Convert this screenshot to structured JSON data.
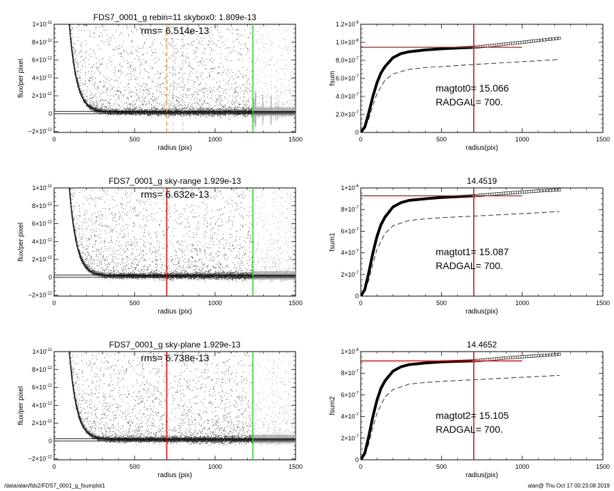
{
  "footer": {
    "left": "/data/alan/fds2/FDS7_0001_g_fsumplot1",
    "right": "alan@  Thu Oct 17 00:23:08 2019"
  },
  "colors": {
    "axis": "#000000",
    "points_dark": "#4a4a4a",
    "points_light": "#a9a9a9",
    "red": "#e00000",
    "green": "#21d421",
    "orange": "#f0a030"
  },
  "chart_data": [
    {
      "id": "profile-skybox0",
      "type": "scatter",
      "title": "FDS7_0001_g rebin=11   skybox0:  1.809e-13",
      "annotation": "rms= 6.514e-13",
      "xlabel": "radius (pix)",
      "ylabel": "flux/per pixel",
      "xlim": [
        0,
        1500
      ],
      "ylim": [
        -2.1e-12,
        1e-11
      ],
      "xticks": [
        0,
        500,
        1000,
        1500
      ],
      "yticks": [
        -2e-12,
        0,
        2e-12,
        4e-12,
        6e-12,
        8e-12,
        1e-11
      ],
      "profile_model": "flux ≈ 8e-11·exp(−r/45) + 1.6e-13",
      "horizontal_lines": [
        2.5e-13,
        0.0
      ],
      "vertical_lines": [
        {
          "x": 700,
          "color": "orange",
          "style": "dashed"
        },
        {
          "x": 740,
          "color": "light-gray",
          "style": "dashed"
        },
        {
          "x": 800,
          "color": "light-gray",
          "style": "dashed"
        },
        {
          "x": 1235,
          "color": "green",
          "style": "solid"
        }
      ],
      "outer_light_region_starts_at": 1235
    },
    {
      "id": "curve-of-growth-0",
      "type": "line",
      "title": "",
      "xlabel": "radius(pix)",
      "ylabel": "fsum",
      "xlim": [
        0,
        1500
      ],
      "ylim": [
        0,
        1.2e-06
      ],
      "xticks": [
        0,
        500,
        1000,
        1500
      ],
      "yticks": [
        0,
        2e-07,
        4e-07,
        6e-07,
        8e-07,
        1e-06,
        1.2e-06
      ],
      "ytick_labels": [
        "0",
        "2.0×10⁻⁷",
        "4.0×10⁻⁷",
        "6.0×10⁻⁷",
        "8.0×10⁻⁷",
        "1.0×10⁻⁶",
        "1.2×10⁻⁶"
      ],
      "labels": [
        "magtot0=  15.066",
        "RADGAL=    700."
      ],
      "series": [
        {
          "style": "thick",
          "x": [
            0,
            25,
            50,
            75,
            100,
            125,
            150,
            200,
            250,
            300,
            400,
            500,
            600,
            700
          ],
          "y": [
            0,
            6e-08,
            2.2e-07,
            4e-07,
            5.5e-07,
            6.6e-07,
            7.3e-07,
            8.3e-07,
            8.75e-07,
            8.95e-07,
            9.15e-07,
            9.28e-07,
            9.37e-07,
            9.45e-07
          ]
        },
        {
          "style": "squares",
          "x": [
            700,
            800,
            900,
            1000,
            1100,
            1230
          ],
          "y": [
            9.45e-07,
            9.62e-07,
            9.82e-07,
            1e-06,
            1.02e-06,
            1.045e-06
          ]
        },
        {
          "style": "dashed",
          "x": [
            0,
            25,
            50,
            75,
            100,
            150,
            200,
            300,
            400,
            500,
            700,
            900,
            1100,
            1230
          ],
          "y": [
            0,
            4e-08,
            1.5e-07,
            3e-07,
            4.3e-07,
            5.8e-07,
            6.5e-07,
            7e-07,
            7.2e-07,
            7.3e-07,
            7.55e-07,
            7.75e-07,
            7.95e-07,
            8.1e-07
          ]
        }
      ],
      "hline": {
        "y": 9.45e-07,
        "x_range": [
          0,
          1000
        ],
        "color": "red"
      },
      "vline": {
        "x": 700,
        "color": "red"
      }
    },
    {
      "id": "profile-sky-range",
      "type": "scatter",
      "title": "FDS7_0001_g sky-range  1.929e-13",
      "annotation": "rms= 6.632e-13",
      "xlabel": "radius (pix)",
      "ylabel": "flux/per pixel",
      "xlim": [
        0,
        1500
      ],
      "ylim": [
        -2.1e-12,
        1e-11
      ],
      "xticks": [
        0,
        500,
        1000,
        1500
      ],
      "yticks": [
        -2e-12,
        0,
        2e-12,
        4e-12,
        6e-12,
        8e-12,
        1e-11
      ],
      "horizontal_lines": [
        2.5e-13,
        0.0
      ],
      "vertical_lines": [
        {
          "x": 700,
          "color": "red",
          "style": "solid"
        },
        {
          "x": 1235,
          "color": "green",
          "style": "solid"
        }
      ],
      "outer_light_region_starts_at": 1235
    },
    {
      "id": "curve-of-growth-1",
      "type": "line",
      "title": "14.4519",
      "xlabel": "radius(pix)",
      "ylabel": "fsum1",
      "xlim": [
        0,
        1500
      ],
      "ylim": [
        0,
        1e-06
      ],
      "xticks": [
        0,
        500,
        1000,
        1500
      ],
      "yticks": [
        0,
        2e-07,
        4e-07,
        6e-07,
        8e-07,
        1e-06
      ],
      "ytick_labels": [
        "0",
        "2×10⁻⁷",
        "4×10⁻⁷",
        "6×10⁻⁷",
        "8×10⁻⁷",
        "1×10⁻⁶"
      ],
      "labels": [
        "magtot1=  15.087",
        "RADGAL=    700."
      ],
      "series": [
        {
          "style": "thick",
          "x": [
            0,
            25,
            50,
            75,
            100,
            125,
            150,
            200,
            250,
            300,
            400,
            500,
            600,
            700
          ],
          "y": [
            0,
            6e-08,
            2.2e-07,
            4e-07,
            5.5e-07,
            6.6e-07,
            7.3e-07,
            8.25e-07,
            8.65e-07,
            8.85e-07,
            9e-07,
            9.12e-07,
            9.2e-07,
            9.27e-07
          ]
        },
        {
          "style": "squares",
          "x": [
            700,
            800,
            900,
            1000,
            1100,
            1230
          ],
          "y": [
            9.27e-07,
            9.4e-07,
            9.52e-07,
            9.62e-07,
            9.72e-07,
            9.82e-07
          ]
        },
        {
          "style": "dashed",
          "x": [
            0,
            25,
            50,
            75,
            100,
            150,
            200,
            300,
            400,
            500,
            700,
            900,
            1100,
            1230
          ],
          "y": [
            0,
            4e-08,
            1.5e-07,
            3e-07,
            4.3e-07,
            5.8e-07,
            6.5e-07,
            7e-07,
            7.15e-07,
            7.25e-07,
            7.4e-07,
            7.55e-07,
            7.7e-07,
            7.82e-07
          ]
        }
      ],
      "hline": {
        "y": 9.27e-07,
        "x_range": [
          0,
          1000
        ],
        "color": "red"
      },
      "vline": {
        "x": 700,
        "color": "red"
      }
    },
    {
      "id": "profile-sky-plane",
      "type": "scatter",
      "title": "FDS7_0001_g sky-plane  1.929e-13",
      "annotation": "rms= 6.738e-13",
      "xlabel": "radius (pix)",
      "ylabel": "flux/per pixel",
      "xlim": [
        0,
        1500
      ],
      "ylim": [
        -2.1e-12,
        1e-11
      ],
      "xticks": [
        0,
        500,
        1000,
        1500
      ],
      "yticks": [
        -2e-12,
        0,
        2e-12,
        4e-12,
        6e-12,
        8e-12,
        1e-11
      ],
      "horizontal_lines": [
        2.5e-13,
        0.0
      ],
      "vertical_lines": [
        {
          "x": 700,
          "color": "red",
          "style": "solid"
        },
        {
          "x": 1235,
          "color": "green",
          "style": "solid"
        }
      ],
      "outer_light_region_starts_at": 1235
    },
    {
      "id": "curve-of-growth-2",
      "type": "line",
      "title": "14.4652",
      "xlabel": "radius(pix)",
      "ylabel": "fsum2",
      "xlim": [
        0,
        1500
      ],
      "ylim": [
        0,
        1e-06
      ],
      "xticks": [
        0,
        500,
        1000,
        1500
      ],
      "yticks": [
        0,
        2e-07,
        4e-07,
        6e-07,
        8e-07,
        1e-06
      ],
      "ytick_labels": [
        "0",
        "2×10⁻⁷",
        "4×10⁻⁷",
        "6×10⁻⁷",
        "8×10⁻⁷",
        "1×10⁻⁶"
      ],
      "labels": [
        "magtot2=  15.105",
        "RADGAL=    700."
      ],
      "series": [
        {
          "style": "thick",
          "x": [
            0,
            25,
            50,
            75,
            100,
            125,
            150,
            200,
            250,
            300,
            400,
            500,
            600,
            700
          ],
          "y": [
            0,
            6e-08,
            2.2e-07,
            4e-07,
            5.5e-07,
            6.6e-07,
            7.3e-07,
            8.2e-07,
            8.6e-07,
            8.8e-07,
            8.95e-07,
            9.05e-07,
            9.1e-07,
            9.14e-07
          ]
        },
        {
          "style": "squares",
          "x": [
            700,
            800,
            900,
            1000,
            1100,
            1230
          ],
          "y": [
            9.14e-07,
            9.28e-07,
            9.42e-07,
            9.52e-07,
            9.62e-07,
            9.75e-07
          ]
        },
        {
          "style": "dashed",
          "x": [
            0,
            25,
            50,
            75,
            100,
            150,
            200,
            300,
            400,
            500,
            700,
            900,
            1100,
            1230
          ],
          "y": [
            0,
            4e-08,
            1.5e-07,
            3e-07,
            4.3e-07,
            5.8e-07,
            6.5e-07,
            7e-07,
            7.15e-07,
            7.25e-07,
            7.4e-07,
            7.55e-07,
            7.7e-07,
            7.8e-07
          ]
        }
      ],
      "hline": {
        "y": 9.14e-07,
        "x_range": [
          0,
          1000
        ],
        "color": "red"
      },
      "vline": {
        "x": 700,
        "color": "red"
      }
    }
  ]
}
